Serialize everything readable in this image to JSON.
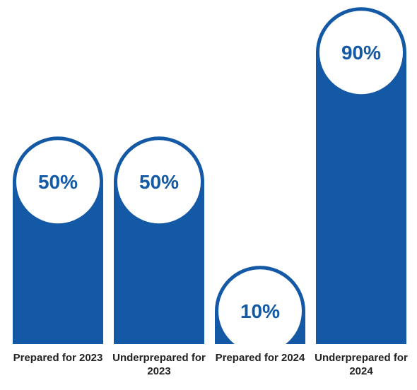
{
  "chart_data": {
    "type": "bar",
    "categories": [
      "Prepared for 2023",
      "Underprepared for 2023",
      "Prepared for 2024",
      "Underprepared for 2024"
    ],
    "values": [
      50,
      50,
      10,
      90
    ],
    "value_labels": [
      "50%",
      "50%",
      "10%",
      "90%"
    ],
    "color": "#1459a6"
  }
}
